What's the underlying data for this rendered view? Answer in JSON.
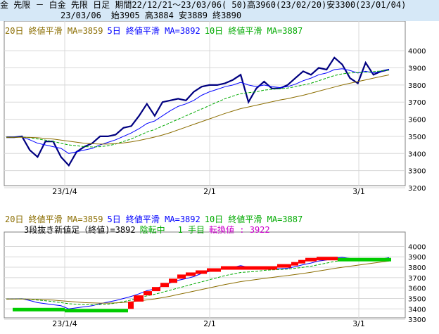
{
  "header": {
    "line1": "金 先限 － 白金 先限 日足 期間22/12/21～23/03/06( 50)高3960(23/02/20)安3300(23/01/04)",
    "date": "23/03/06",
    "ohlc": "始3905 高3884 安3889 終3890"
  },
  "legend_top": {
    "ma20": "20日 終値平滑 MA=3859",
    "ma5": "5日 終値平滑 MA=3892",
    "ma10": "10日 終値平滑 MA=3887"
  },
  "legend_bottom": {
    "ma20": "20日 終値平滑 MA=3859",
    "ma5": "5日 終値平滑 MA=3892",
    "ma10": "10日 終値平滑 MA=3887",
    "breakout_label": "3段抜き新値足（終値)=3892",
    "status": "陰転中",
    "step": "1 手目",
    "reversal": "転換値 : 3922"
  },
  "colors": {
    "header_bg": "#d6e8f7",
    "close": "#000080",
    "ma5": "#0000ff",
    "ma10": "#00aa00",
    "ma20": "#8b6d00",
    "reversal_text": "#cc00cc",
    "up_brick": "#ff0000",
    "down_brick": "#00cc00"
  },
  "chart_data": [
    {
      "type": "line",
      "x_ticks": [
        "23/1/4",
        "2/1",
        "3/1"
      ],
      "y_ticks": [
        3200,
        3300,
        3400,
        3500,
        3600,
        3700,
        3800,
        3900,
        4000
      ],
      "ylim": [
        3200,
        4050
      ],
      "grid": true,
      "series": [
        {
          "name": "終値",
          "values": [
            3495,
            3495,
            3500,
            3420,
            3380,
            3470,
            3470,
            3380,
            3330,
            3410,
            3440,
            3460,
            3500,
            3500,
            3510,
            3550,
            3560,
            3620,
            3690,
            3620,
            3700,
            3710,
            3720,
            3710,
            3760,
            3790,
            3800,
            3800,
            3810,
            3830,
            3860,
            3700,
            3780,
            3820,
            3780,
            3780,
            3800,
            3840,
            3880,
            3860,
            3900,
            3890,
            3960,
            3920,
            3840,
            3810,
            3930,
            3860,
            3880,
            3890
          ]
        },
        {
          "name": "5日 終値平滑",
          "values": [
            3495,
            3496,
            3497,
            3480,
            3460,
            3450,
            3440,
            3430,
            3400,
            3410,
            3420,
            3430,
            3450,
            3465,
            3480,
            3500,
            3520,
            3545,
            3575,
            3590,
            3620,
            3650,
            3675,
            3690,
            3710,
            3740,
            3760,
            3775,
            3790,
            3800,
            3815,
            3800,
            3790,
            3800,
            3790,
            3785,
            3790,
            3805,
            3825,
            3840,
            3860,
            3870,
            3890,
            3895,
            3885,
            3870,
            3880,
            3870,
            3880,
            3892
          ]
        },
        {
          "name": "10日 終値平滑",
          "values": [
            3495,
            3495,
            3496,
            3492,
            3485,
            3478,
            3470,
            3460,
            3450,
            3445,
            3440,
            3438,
            3440,
            3445,
            3455,
            3470,
            3485,
            3505,
            3525,
            3540,
            3560,
            3580,
            3600,
            3620,
            3640,
            3660,
            3680,
            3700,
            3720,
            3735,
            3750,
            3755,
            3760,
            3770,
            3775,
            3778,
            3782,
            3790,
            3800,
            3810,
            3825,
            3840,
            3855,
            3865,
            3870,
            3872,
            3875,
            3878,
            3882,
            3887
          ]
        },
        {
          "name": "20日 終値平滑",
          "values": [
            3495,
            3495,
            3495,
            3494,
            3492,
            3488,
            3484,
            3478,
            3472,
            3466,
            3460,
            3457,
            3455,
            3455,
            3458,
            3462,
            3468,
            3476,
            3486,
            3496,
            3508,
            3522,
            3538,
            3554,
            3570,
            3586,
            3602,
            3618,
            3634,
            3648,
            3662,
            3672,
            3682,
            3692,
            3702,
            3712,
            3720,
            3730,
            3740,
            3752,
            3764,
            3776,
            3788,
            3800,
            3810,
            3820,
            3830,
            3840,
            3850,
            3859
          ]
        }
      ]
    },
    {
      "type": "bar",
      "x_ticks": [
        "23/1/4",
        "2/1",
        "3/1"
      ],
      "y_ticks": [
        3300,
        3400,
        3500,
        3600,
        3700,
        3800,
        3900,
        4000
      ],
      "ylim": [
        3260,
        4030
      ],
      "grid": true,
      "bricks": [
        {
          "dir": "down",
          "low": 3380,
          "high": 3410
        },
        {
          "dir": "down",
          "low": 3370,
          "high": 3400
        },
        {
          "dir": "up",
          "low": 3400,
          "high": 3470
        },
        {
          "dir": "up",
          "low": 3470,
          "high": 3530
        },
        {
          "dir": "up",
          "low": 3530,
          "high": 3570
        },
        {
          "dir": "up",
          "low": 3570,
          "high": 3610
        },
        {
          "dir": "up",
          "low": 3610,
          "high": 3650
        },
        {
          "dir": "up",
          "low": 3650,
          "high": 3690
        },
        {
          "dir": "up",
          "low": 3690,
          "high": 3730
        },
        {
          "dir": "up",
          "low": 3730,
          "high": 3750
        },
        {
          "dir": "up",
          "low": 3750,
          "high": 3770
        },
        {
          "dir": "up",
          "low": 3770,
          "high": 3790
        },
        {
          "dir": "up",
          "low": 3790,
          "high": 3810
        },
        {
          "dir": "up",
          "low": 3810,
          "high": 3830
        },
        {
          "dir": "up",
          "low": 3830,
          "high": 3850
        },
        {
          "dir": "up",
          "low": 3850,
          "high": 3870
        },
        {
          "dir": "up",
          "low": 3870,
          "high": 3890
        },
        {
          "dir": "up",
          "low": 3890,
          "high": 3900
        },
        {
          "dir": "down",
          "low": 3860,
          "high": 3890
        }
      ],
      "brick_x": [
        [
          18,
          92
        ],
        [
          92,
          182
        ],
        [
          182,
          190
        ],
        [
          190,
          204
        ],
        [
          204,
          216
        ],
        [
          216,
          228
        ],
        [
          228,
          240
        ],
        [
          240,
          252
        ],
        [
          252,
          264
        ],
        [
          264,
          278
        ],
        [
          278,
          294
        ],
        [
          294,
          314
        ],
        [
          314,
          394
        ],
        [
          394,
          414
        ],
        [
          414,
          424
        ],
        [
          424,
          434
        ],
        [
          434,
          450
        ],
        [
          450,
          480
        ],
        [
          480,
          556
        ]
      ],
      "series": [
        {
          "name": "5日 終値平滑",
          "values": [
            3495,
            3496,
            3497,
            3480,
            3460,
            3450,
            3440,
            3430,
            3400,
            3410,
            3420,
            3430,
            3450,
            3465,
            3480,
            3500,
            3520,
            3545,
            3575,
            3590,
            3620,
            3650,
            3675,
            3690,
            3710,
            3740,
            3760,
            3775,
            3790,
            3800,
            3815,
            3800,
            3790,
            3800,
            3790,
            3785,
            3790,
            3805,
            3825,
            3840,
            3860,
            3870,
            3890,
            3895,
            3885,
            3870,
            3880,
            3870,
            3880,
            3892
          ]
        },
        {
          "name": "10日 終値平滑",
          "values": [
            3495,
            3495,
            3496,
            3492,
            3485,
            3478,
            3470,
            3460,
            3450,
            3445,
            3440,
            3438,
            3440,
            3445,
            3455,
            3470,
            3485,
            3505,
            3525,
            3540,
            3560,
            3580,
            3600,
            3620,
            3640,
            3660,
            3680,
            3700,
            3720,
            3735,
            3750,
            3755,
            3760,
            3770,
            3775,
            3778,
            3782,
            3790,
            3800,
            3810,
            3825,
            3840,
            3855,
            3865,
            3870,
            3872,
            3875,
            3878,
            3882,
            3887
          ]
        },
        {
          "name": "20日 終値平滑",
          "values": [
            3495,
            3495,
            3495,
            3494,
            3492,
            3488,
            3484,
            3478,
            3472,
            3466,
            3460,
            3457,
            3455,
            3455,
            3458,
            3462,
            3468,
            3476,
            3486,
            3496,
            3508,
            3522,
            3538,
            3554,
            3570,
            3586,
            3602,
            3618,
            3634,
            3648,
            3662,
            3672,
            3682,
            3692,
            3702,
            3712,
            3720,
            3730,
            3740,
            3752,
            3764,
            3776,
            3788,
            3800,
            3810,
            3820,
            3830,
            3840,
            3850,
            3859
          ]
        }
      ]
    }
  ]
}
